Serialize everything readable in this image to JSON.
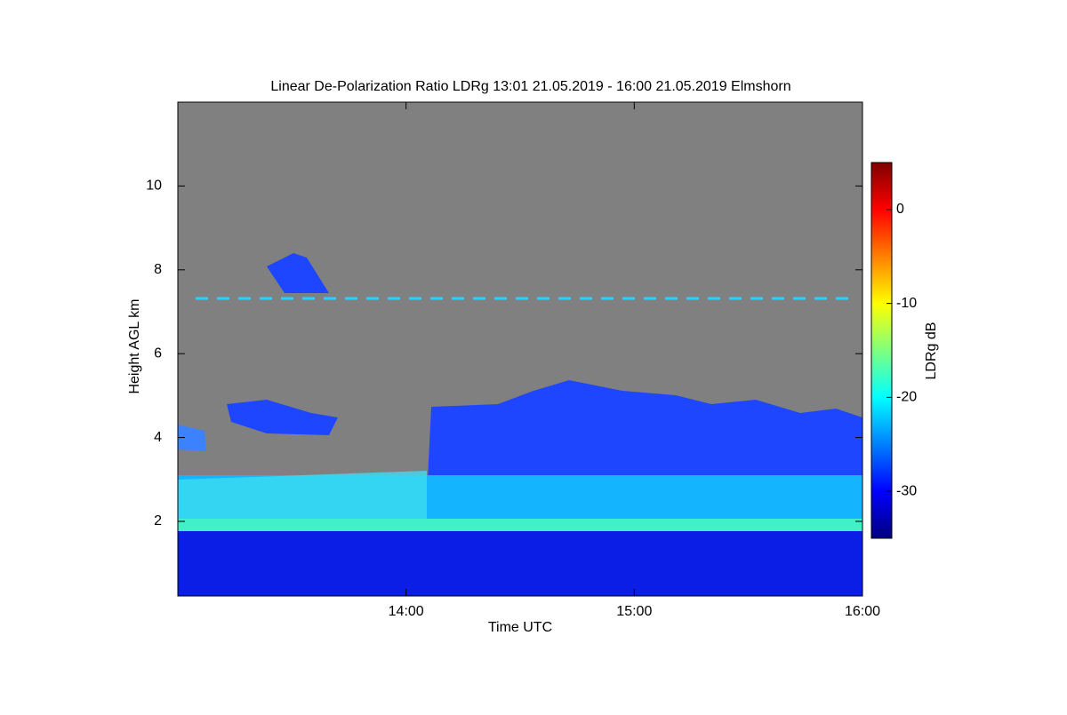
{
  "chart_data": {
    "type": "heatmap",
    "title": "Linear De-Polarization Ratio LDRg   13:01 21.05.2019 - 16:00 21.05.2019 Elmshorn",
    "x_label": "Time UTC",
    "y_label": "Height AGL km",
    "xlim": [
      13,
      16
    ],
    "xticks": [
      {
        "value": 14,
        "label": "14:00"
      },
      {
        "value": 15,
        "label": "15:00"
      },
      {
        "value": 16,
        "label": "16:00"
      }
    ],
    "ylim": [
      0.22,
      12
    ],
    "yticks": [
      2,
      4,
      6,
      8,
      10
    ],
    "colorbar": {
      "label": "LDRg dB",
      "lim": [
        -35,
        5
      ],
      "ticks": [
        0,
        -10,
        -20,
        -30
      ],
      "colormap": "jet"
    },
    "no_data_color": "#808080"
  }
}
